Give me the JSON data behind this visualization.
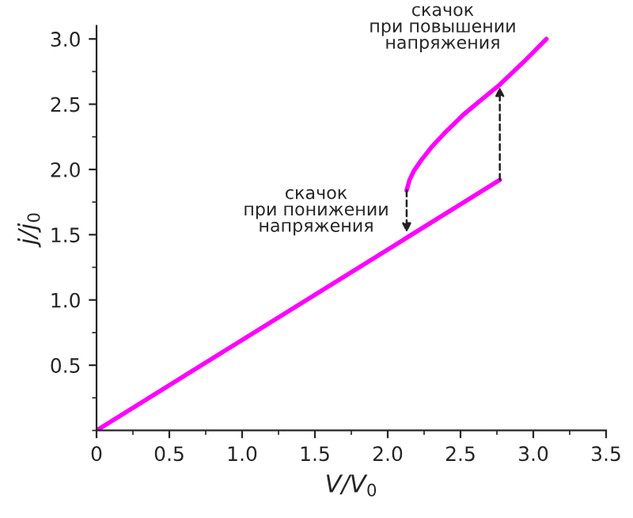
{
  "chart_data": {
    "type": "line",
    "xlabel": "V/V$_{0}$",
    "ylabel": "j/j$_{0}$",
    "series": [
      {
        "color": "#ff00ff",
        "x": [
          0,
          2.77
        ],
        "values": [
          0,
          1.92
        ]
      },
      {
        "color": "#ff00ff",
        "x": [
          2.13,
          2.15,
          2.18,
          2.23,
          2.3,
          2.4,
          2.52,
          2.65,
          2.77,
          2.93,
          3.09
        ],
        "values": [
          1.84,
          1.92,
          1.99,
          2.07,
          2.17,
          2.29,
          2.42,
          2.54,
          2.65,
          2.82,
          3.0
        ]
      }
    ],
    "annotations": [
      {
        "text": "скачок\nпри повышении\nнапряжения",
        "x": 2.77,
        "y": 2.65
      },
      {
        "text": "скачок\nпри понижении\nнапряжения",
        "x": 2.13,
        "y": 1.5
      }
    ],
    "xlim": [
      0,
      3.5
    ],
    "ylim": [
      0,
      3.1
    ],
    "xticks": [
      0,
      0.5,
      {
        "value": 1,
        "label": "1.0"
      },
      1.5,
      {
        "value": 2,
        "label": "2.0"
      },
      2.5,
      {
        "value": 3,
        "label": "3.0"
      },
      3.5
    ],
    "yticks": [
      0.5,
      {
        "value": 1,
        "label": "1.0"
      },
      1.5,
      {
        "value": 2,
        "label": "2.0"
      },
      2.5,
      {
        "value": 3,
        "label": "3.0"
      }
    ],
    "grid": false,
    "legend": false,
    "marker": "none",
    "line_style": "solid"
  }
}
